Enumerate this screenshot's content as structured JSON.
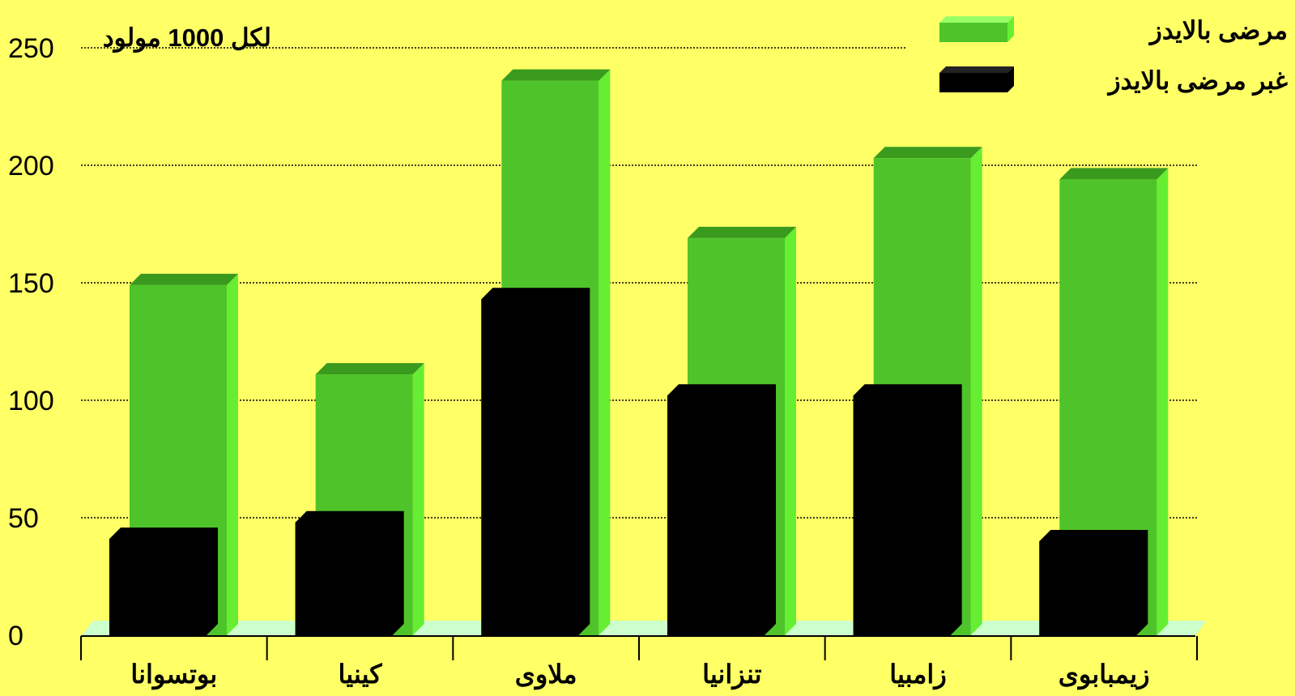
{
  "chart_data": {
    "type": "bar",
    "title": "",
    "unit_label": "لكل 1000 مولود",
    "xlabel": "",
    "ylabel": "",
    "ylim": [
      0,
      250
    ],
    "yticks": [
      0,
      50,
      100,
      150,
      200,
      250
    ],
    "grid": true,
    "legend_position": "top-right",
    "categories": [
      "بوتسوانا",
      "كينيا",
      "ملاوى",
      "تنزانيا",
      "زامبيا",
      "زيمبابوى"
    ],
    "series": [
      {
        "name": "مرضى بالايدز",
        "color": "#4EC42A",
        "values": [
          149,
          111,
          236,
          169,
          203,
          194
        ]
      },
      {
        "name": "غبر مرضى بالايدز",
        "color": "#000000",
        "values": [
          41,
          48,
          143,
          102,
          102,
          40
        ]
      }
    ]
  }
}
